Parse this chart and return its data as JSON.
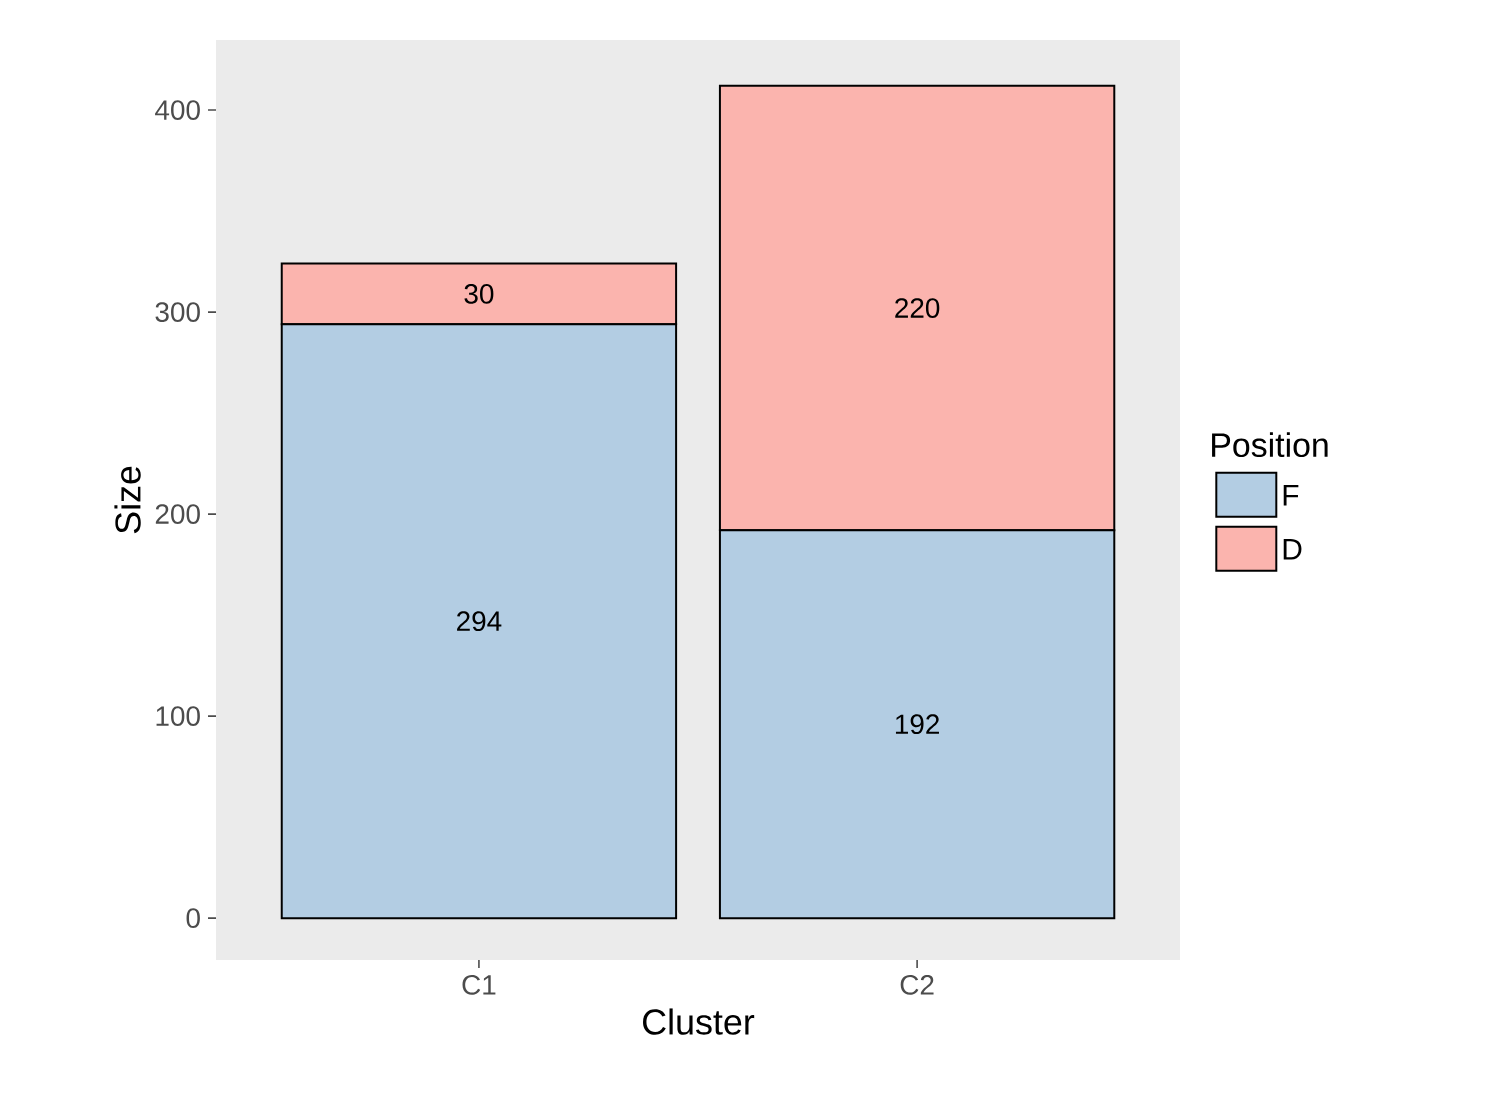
{
  "chart_data": {
    "type": "bar",
    "stacked": true,
    "xlabel": "Cluster",
    "ylabel": "Size",
    "legend_title": "Position",
    "legend": "right",
    "data_labels": true,
    "categories": [
      "C1",
      "C2"
    ],
    "series": [
      {
        "name": "F",
        "color": "#b3cde3",
        "values": [
          294,
          192
        ]
      },
      {
        "name": "D",
        "color": "#fbb4ae",
        "values": [
          30,
          220
        ]
      }
    ],
    "ylim": [
      -20.7,
      434.7
    ],
    "yticks": [
      0,
      100,
      200,
      300,
      400
    ]
  }
}
